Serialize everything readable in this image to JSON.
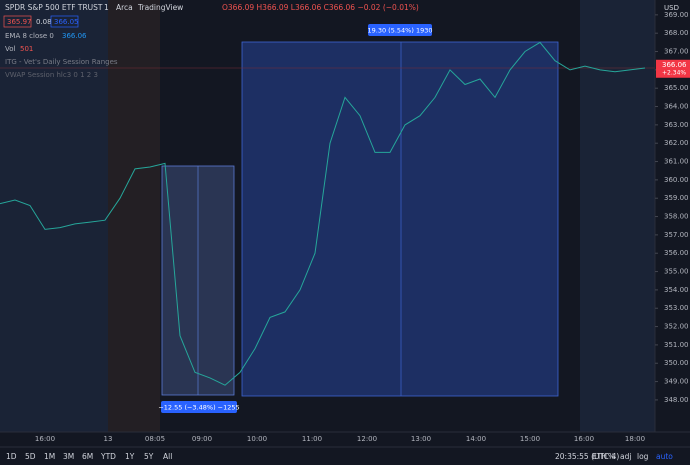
{
  "header": {
    "symbol": "SPDR S&P 500 ETF TRUST",
    "interval": "1",
    "exchange": "Arca",
    "source": "TradingView",
    "ohlc": "O366.09 H366.09 L366.06 C366.06 −0.02 (−0.01%)",
    "bid": "365.97",
    "spread": "0.08",
    "ask": "366.05"
  },
  "indicators": [
    {
      "name": "EMA 8 close 0",
      "value": "366.06"
    },
    {
      "name": "Vol",
      "value": "501"
    },
    {
      "name": "ITG - Vet's Daily Session Ranges"
    },
    {
      "name": "VWAP Session hlc3 0 1 2 3"
    }
  ],
  "chart": {
    "type": "line",
    "color": "#26a69a",
    "currency": "USD",
    "values": [
      358.7,
      358.9,
      358.6,
      357.3,
      357.4,
      357.6,
      357.7,
      357.8,
      359.0,
      360.6,
      360.7,
      360.9,
      351.5,
      349.5,
      349.2,
      348.8,
      349.5,
      350.8,
      352.5,
      352.8,
      354.0,
      356.0,
      362.0,
      364.5,
      363.5,
      361.5,
      361.5,
      363.0,
      363.5,
      364.5,
      366.0,
      365.2,
      365.5,
      364.5,
      366.0,
      367.0,
      367.5,
      366.5,
      366.0,
      366.2,
      366.0,
      365.9,
      366.0,
      366.1
    ],
    "ylim": [
      346.25,
      369.81
    ],
    "yticks": [
      {
        "value": 348,
        "label": "348.00"
      },
      {
        "value": 349,
        "label": "349.00"
      },
      {
        "value": 350,
        "label": "350.00"
      },
      {
        "value": 351,
        "label": "351.00"
      },
      {
        "value": 352,
        "label": "352.00"
      },
      {
        "value": 353,
        "label": "353.00"
      },
      {
        "value": 354,
        "label": "354.00"
      },
      {
        "value": 355,
        "label": "355.00"
      },
      {
        "value": 356,
        "label": "356.00"
      },
      {
        "value": 357,
        "label": "357.00"
      },
      {
        "value": 358,
        "label": "358.00"
      },
      {
        "value": 359,
        "label": "359.00"
      },
      {
        "value": 360,
        "label": "360.00"
      },
      {
        "value": 361,
        "label": "361.00"
      },
      {
        "value": 362,
        "label": "362.00"
      },
      {
        "value": 363,
        "label": "363.00"
      },
      {
        "value": 364,
        "label": "364.00"
      },
      {
        "value": 365,
        "label": "365.00"
      },
      {
        "value": 366,
        "label": "366.00"
      },
      {
        "value": 367,
        "label": "367.00"
      },
      {
        "value": 368,
        "label": "368.00"
      },
      {
        "value": 369,
        "label": "369.00"
      }
    ],
    "time_labels": [
      "16:00",
      "13",
      "08:05",
      "09:00",
      "10:00",
      "11:00",
      "12:00",
      "13:00",
      "14:00",
      "15:00",
      "16:00",
      "18:00"
    ],
    "last_price": {
      "value": 366.06,
      "label": "366.06",
      "change": "+2.34%"
    },
    "measures": [
      {
        "label": "19.30 (5.54%) 1930"
      },
      {
        "label": "−12.55 (−3.48%) −1255"
      }
    ]
  },
  "toolbar": {
    "ranges": [
      "1D",
      "5D",
      "1M",
      "3M",
      "6M",
      "YTD",
      "1Y",
      "5Y",
      "All"
    ],
    "clock": "20:35:55 (UTC-4)",
    "session": "ETH",
    "options": [
      "%",
      "adj",
      "log",
      "auto"
    ]
  }
}
